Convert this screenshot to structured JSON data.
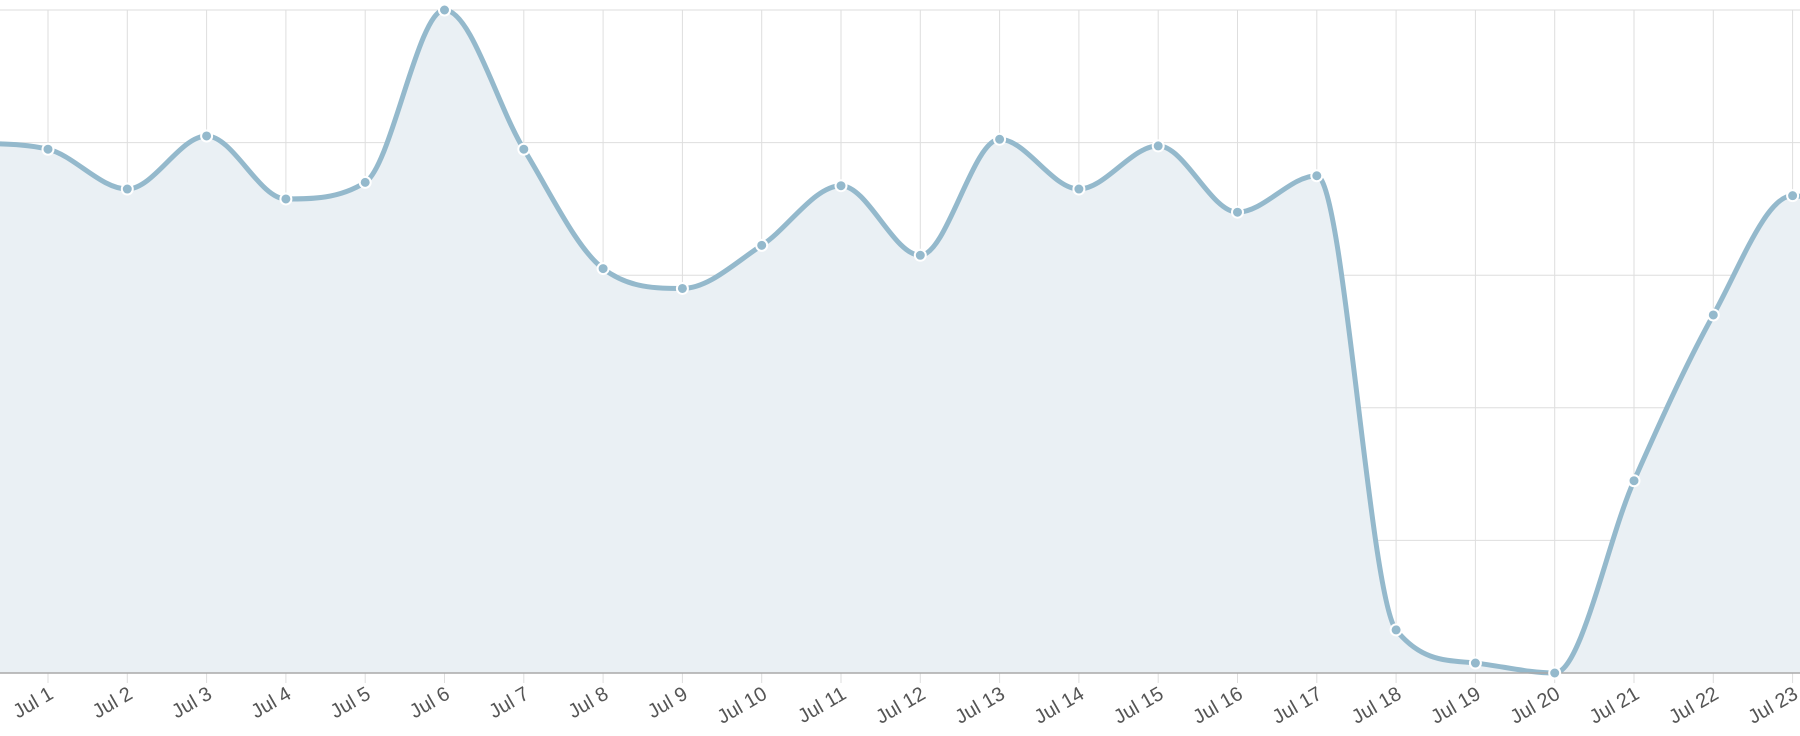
{
  "chart_data": {
    "type": "area",
    "title": "",
    "xlabel": "",
    "ylabel": "",
    "categories": [
      "Jul 1",
      "Jul 2",
      "Jul 3",
      "Jul 4",
      "Jul 5",
      "Jul 6",
      "Jul 7",
      "Jul 8",
      "Jul 9",
      "Jul 10",
      "Jul 11",
      "Jul 12",
      "Jul 13",
      "Jul 14",
      "Jul 15",
      "Jul 16",
      "Jul 17",
      "Jul 18",
      "Jul 19",
      "Jul 20",
      "Jul 21",
      "Jul 22",
      "Jul 23"
    ],
    "series": [
      {
        "values": [
          79,
          73,
          81,
          71.5,
          74,
          100,
          79,
          61,
          58,
          64.5,
          73.5,
          63,
          80.5,
          73,
          79.5,
          69.5,
          75,
          6.5,
          1.5,
          0,
          29,
          54,
          72
        ],
        "leading_value": 80,
        "color": "#94b9cc",
        "fill": "#eaf0f4"
      }
    ],
    "ylim": [
      0,
      100
    ],
    "y_gridlines": [
      0,
      20,
      40,
      60,
      80,
      100
    ],
    "grid": true,
    "y_tick_labels_shown": false,
    "x_tick_rotation_deg": -30,
    "legend": "none"
  }
}
